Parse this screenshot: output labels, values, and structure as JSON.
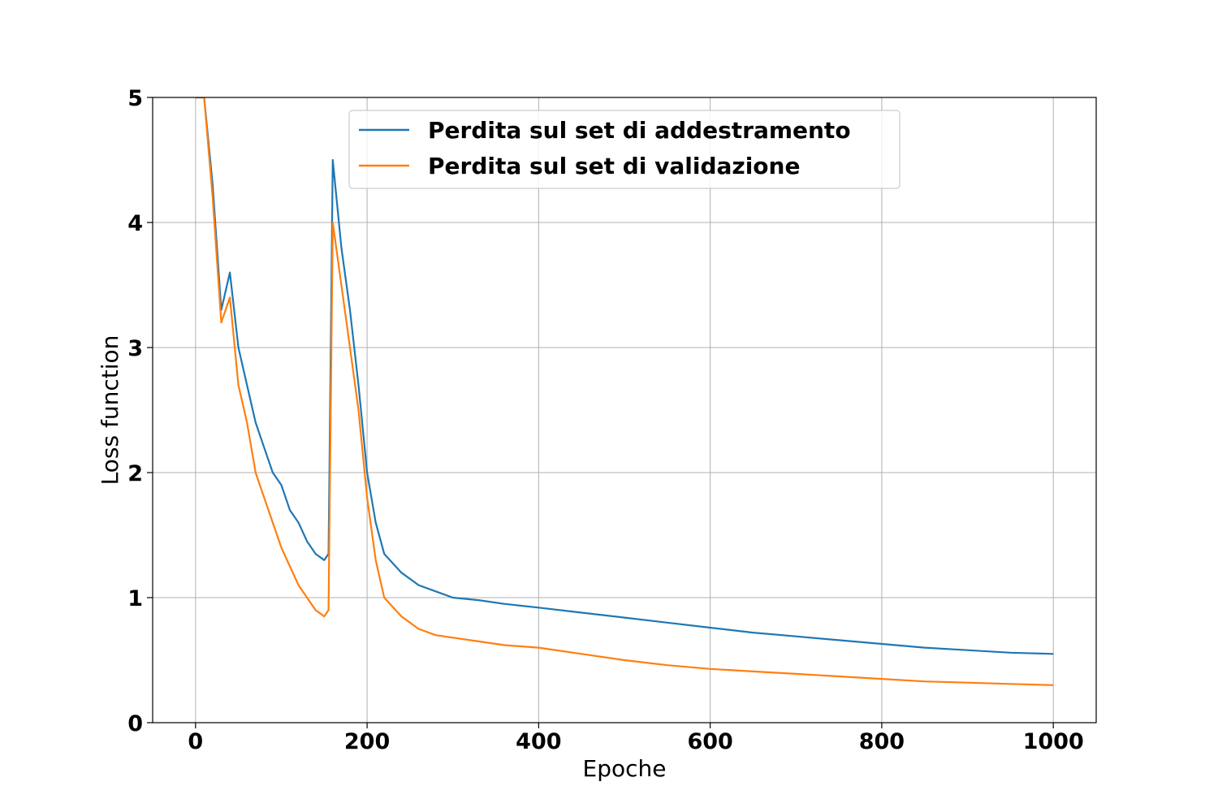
{
  "chart_data": {
    "type": "line",
    "xlabel": "Epoche",
    "ylabel": "Loss function",
    "xlim": [
      -50,
      1050
    ],
    "ylim": [
      0,
      5
    ],
    "xticks": [
      0,
      200,
      400,
      600,
      800,
      1000
    ],
    "yticks": [
      0,
      1,
      2,
      3,
      4,
      5
    ],
    "grid": true,
    "legend_position": "top-center",
    "series": [
      {
        "name": "Perdita sul set di addestramento",
        "color": "#1f77b4",
        "x": [
          0,
          10,
          20,
          30,
          40,
          50,
          60,
          70,
          80,
          90,
          100,
          110,
          120,
          130,
          140,
          150,
          155,
          160,
          170,
          180,
          190,
          200,
          210,
          220,
          240,
          260,
          280,
          300,
          330,
          360,
          400,
          450,
          500,
          550,
          600,
          650,
          700,
          750,
          800,
          850,
          900,
          950,
          1000
        ],
        "y": [
          5.0,
          5.0,
          4.3,
          3.3,
          3.6,
          3.0,
          2.7,
          2.4,
          2.2,
          2.0,
          1.9,
          1.7,
          1.6,
          1.45,
          1.35,
          1.3,
          1.35,
          4.5,
          3.8,
          3.3,
          2.7,
          2.0,
          1.6,
          1.35,
          1.2,
          1.1,
          1.05,
          1.0,
          0.98,
          0.95,
          0.92,
          0.88,
          0.84,
          0.8,
          0.76,
          0.72,
          0.69,
          0.66,
          0.63,
          0.6,
          0.58,
          0.56,
          0.55
        ]
      },
      {
        "name": "Perdita sul set di validazione",
        "color": "#ff7f0e",
        "x": [
          0,
          10,
          20,
          30,
          40,
          50,
          60,
          70,
          80,
          90,
          100,
          110,
          120,
          130,
          140,
          150,
          155,
          160,
          170,
          180,
          190,
          200,
          210,
          220,
          240,
          260,
          280,
          300,
          330,
          360,
          400,
          450,
          500,
          550,
          600,
          650,
          700,
          750,
          800,
          850,
          900,
          950,
          1000
        ],
        "y": [
          5.0,
          5.0,
          4.2,
          3.2,
          3.4,
          2.7,
          2.4,
          2.0,
          1.8,
          1.6,
          1.4,
          1.25,
          1.1,
          1.0,
          0.9,
          0.85,
          0.9,
          4.0,
          3.5,
          3.0,
          2.5,
          1.8,
          1.3,
          1.0,
          0.85,
          0.75,
          0.7,
          0.68,
          0.65,
          0.62,
          0.6,
          0.55,
          0.5,
          0.46,
          0.43,
          0.41,
          0.39,
          0.37,
          0.35,
          0.33,
          0.32,
          0.31,
          0.3
        ]
      }
    ]
  }
}
